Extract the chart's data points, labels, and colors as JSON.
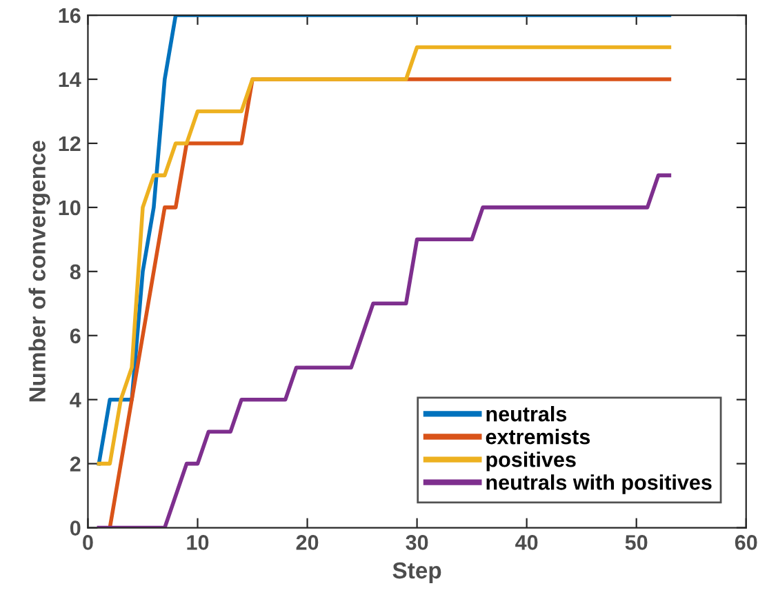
{
  "chart_data": {
    "type": "line",
    "xlabel": "Step",
    "ylabel": "Number of convergence",
    "xlim": [
      0,
      60
    ],
    "ylim": [
      0,
      16
    ],
    "xticks": [
      0,
      10,
      20,
      30,
      40,
      50,
      60
    ],
    "yticks": [
      0,
      2,
      4,
      6,
      8,
      10,
      12,
      14,
      16
    ],
    "grid": false,
    "legend": "bottom right",
    "marker": "none",
    "line_style": "solid",
    "series": [
      {
        "name": "neutrals",
        "color": "#0072bd",
        "x": [
          1,
          2,
          4,
          5,
          6,
          7,
          8,
          53
        ],
        "values": [
          2,
          4,
          4,
          8,
          10,
          14,
          16,
          16
        ]
      },
      {
        "name": "extremists",
        "color": "#d95319",
        "x": [
          2,
          7,
          8,
          9,
          14,
          15,
          53
        ],
        "values": [
          0,
          10,
          10,
          12,
          12,
          14,
          14
        ]
      },
      {
        "name": "positives",
        "color": "#edb120",
        "x": [
          1,
          2,
          3,
          4,
          5,
          6,
          7,
          8,
          9,
          10,
          14,
          15,
          29,
          30,
          53
        ],
        "values": [
          2,
          2,
          4,
          5,
          10,
          11,
          11,
          12,
          12,
          13,
          13,
          14,
          14,
          15,
          15
        ]
      },
      {
        "name": "neutrals with positives",
        "color": "#7e2f8e",
        "x": [
          1,
          7,
          9,
          10,
          11,
          13,
          14,
          18,
          19,
          24,
          26,
          29,
          30,
          35,
          36,
          51,
          52,
          53
        ],
        "values": [
          0,
          0,
          2,
          2,
          3,
          3,
          4,
          4,
          5,
          5,
          7,
          7,
          9,
          9,
          10,
          10,
          11,
          11
        ]
      }
    ]
  }
}
